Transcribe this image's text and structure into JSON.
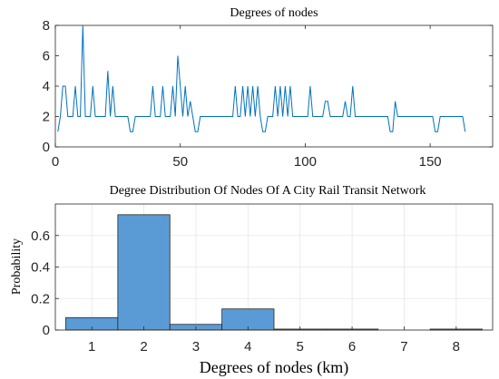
{
  "colors": {
    "line": "#0072BD",
    "bar_fill": "#5B9BD5",
    "bar_edge": "#262626",
    "grid": "#E6E6E6",
    "axis": "#262626"
  },
  "chart_data": [
    {
      "type": "line",
      "title": "Degrees of nodes",
      "xlabel": "",
      "ylabel": "",
      "xlim": [
        0,
        175
      ],
      "ylim": [
        0,
        8
      ],
      "xticks": [
        0,
        50,
        100,
        150
      ],
      "yticks": [
        0,
        2,
        4,
        6,
        8
      ],
      "xtick_labels": [
        "0",
        "50",
        "100",
        "150"
      ],
      "ytick_labels": [
        "0",
        "2",
        "4",
        "6",
        "8"
      ],
      "grid": false,
      "series": [
        {
          "x": [
            1,
            2,
            3,
            4,
            5,
            6,
            7,
            8,
            9,
            10,
            11,
            12,
            13,
            14,
            15,
            16,
            17,
            18,
            19,
            20,
            21,
            22,
            23,
            24,
            25,
            26,
            27,
            28,
            29,
            30,
            31,
            32,
            33,
            34,
            35,
            36,
            37,
            38,
            39,
            40,
            41,
            42,
            43,
            44,
            45,
            46,
            47,
            48,
            49,
            50,
            51,
            52,
            53,
            54,
            55,
            56,
            57,
            58,
            59,
            60,
            61,
            62,
            63,
            64,
            65,
            66,
            67,
            68,
            69,
            70,
            71,
            72,
            73,
            74,
            75,
            76,
            77,
            78,
            79,
            80,
            81,
            82,
            83,
            84,
            85,
            86,
            87,
            88,
            89,
            90,
            91,
            92,
            93,
            94,
            95,
            96,
            97,
            98,
            99,
            100,
            101,
            102,
            103,
            104,
            105,
            106,
            107,
            108,
            109,
            110,
            111,
            112,
            113,
            114,
            115,
            116,
            117,
            118,
            119,
            120,
            121,
            122,
            123,
            124,
            125,
            126,
            127,
            128,
            129,
            130,
            131,
            132,
            133,
            134,
            135,
            136,
            137,
            138,
            139,
            140,
            141,
            142,
            143,
            144,
            145,
            146,
            147,
            148,
            149,
            150,
            151,
            152,
            153,
            154,
            155,
            156,
            157,
            158,
            159,
            160,
            161,
            162,
            163,
            164
          ],
          "y": [
            1,
            2,
            4,
            4,
            2,
            2,
            2,
            4,
            2,
            2,
            8,
            2,
            2,
            2,
            4,
            2,
            2,
            2,
            2,
            2,
            5,
            2,
            4,
            2,
            2,
            2,
            2,
            2,
            2,
            1,
            1,
            2,
            2,
            2,
            2,
            2,
            2,
            2,
            4,
            2,
            2,
            2,
            4,
            2,
            2,
            2,
            4,
            2,
            6,
            4,
            2,
            4,
            2,
            3,
            2,
            1,
            1,
            2,
            2,
            2,
            2,
            2,
            2,
            2,
            2,
            2,
            2,
            2,
            2,
            2,
            2,
            4,
            2,
            2,
            4,
            2,
            4,
            2,
            4,
            2,
            4,
            2,
            1,
            1,
            2,
            2,
            2,
            4,
            2,
            4,
            2,
            4,
            2,
            4,
            2,
            2,
            2,
            2,
            2,
            2,
            2,
            4,
            2,
            2,
            2,
            2,
            2,
            3,
            3,
            2,
            2,
            2,
            2,
            2,
            2,
            3,
            2,
            2,
            4,
            2,
            2,
            2,
            2,
            2,
            2,
            2,
            2,
            2,
            2,
            2,
            2,
            2,
            2,
            1,
            1,
            3,
            2,
            2,
            2,
            2,
            2,
            2,
            2,
            2,
            2,
            2,
            2,
            2,
            2,
            2,
            2,
            1,
            1,
            2,
            2,
            2,
            2,
            2,
            2,
            2,
            2,
            2,
            2,
            1
          ]
        }
      ]
    },
    {
      "type": "bar",
      "title": "Degree Distribution Of Nodes Of A City Rail Transit Network",
      "xlabel": "Degrees of nodes (km)",
      "ylabel": "Probability",
      "xlim": [
        0.3,
        8.7
      ],
      "ylim": [
        0,
        0.8
      ],
      "categories": [
        "1",
        "2",
        "3",
        "4",
        "5",
        "6",
        "7",
        "8"
      ],
      "values": [
        0.079,
        0.732,
        0.036,
        0.134,
        0.006,
        0.006,
        0,
        0.006
      ],
      "yticks": [
        0,
        0.2,
        0.4,
        0.6
      ],
      "ytick_labels": [
        "0",
        "0.2",
        "0.4",
        "0.6"
      ],
      "grid": true
    }
  ]
}
